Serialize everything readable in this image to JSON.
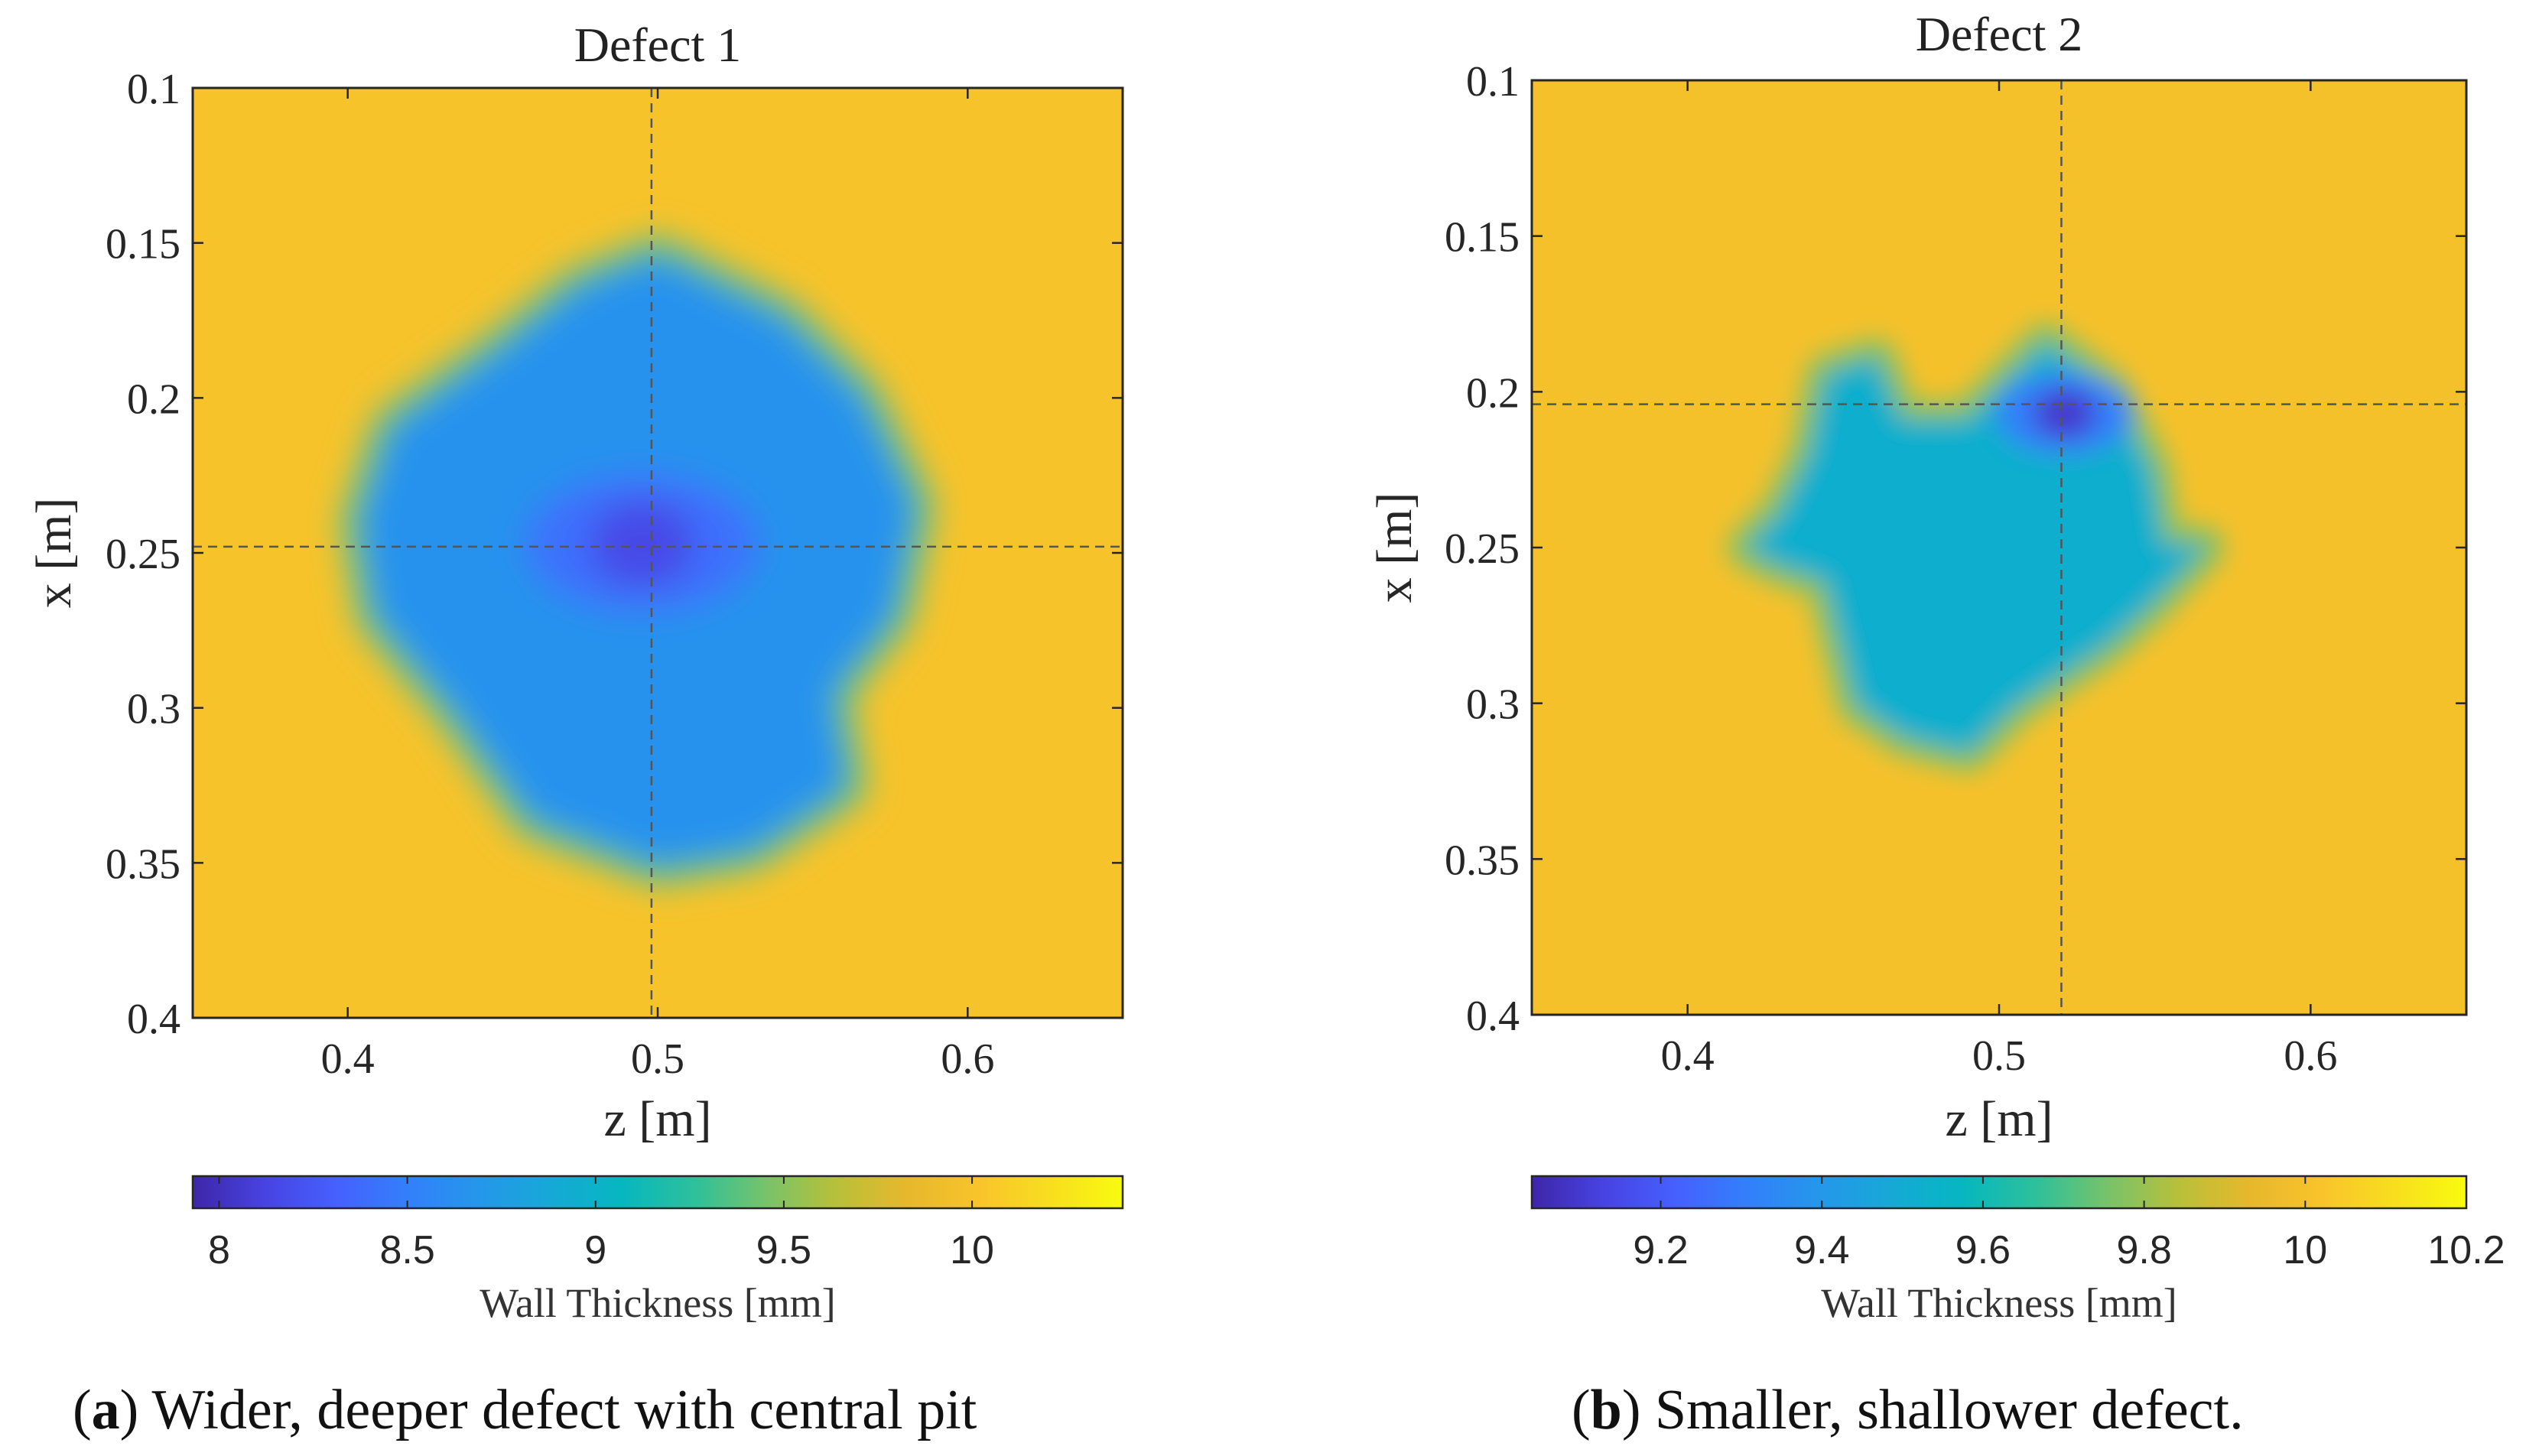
{
  "chart_data": [
    {
      "type": "heatmap",
      "title": "Defect 1",
      "xlabel": "z [m]",
      "ylabel": "x [m]",
      "xlim": [
        0.35,
        0.65
      ],
      "ylim": [
        0.1,
        0.4
      ],
      "y_reversed": true,
      "xticks": [
        0.4,
        0.5,
        0.6
      ],
      "xtick_labels": [
        "0.4",
        "0.5",
        "0.6"
      ],
      "yticks": [
        0.1,
        0.15,
        0.2,
        0.25,
        0.3,
        0.35,
        0.4
      ],
      "ytick_labels": [
        "0.1",
        "0.15",
        "0.2",
        "0.25",
        "0.3",
        "0.35",
        "0.4"
      ],
      "crosshair": {
        "z": 0.498,
        "x": 0.248
      },
      "colorbar": {
        "label": "Wall Thickness [mm]",
        "range": [
          7.93,
          10.4
        ],
        "ticks": [
          8,
          8.5,
          9,
          9.5,
          10
        ],
        "tick_labels": [
          "8",
          "8.5",
          "9",
          "9.5",
          "10"
        ]
      },
      "field": {
        "nominal_mm": 10.0,
        "defect_floor_mm": 8.65,
        "pit_min_mm": 8.15,
        "pit_center": {
          "z": 0.495,
          "x": 0.247
        },
        "pit_radius_m": 0.017,
        "outline": [
          [
            0.5,
            0.155
          ],
          [
            0.54,
            0.175
          ],
          [
            0.565,
            0.2
          ],
          [
            0.582,
            0.235
          ],
          [
            0.575,
            0.27
          ],
          [
            0.555,
            0.295
          ],
          [
            0.56,
            0.325
          ],
          [
            0.53,
            0.345
          ],
          [
            0.5,
            0.35
          ],
          [
            0.46,
            0.335
          ],
          [
            0.435,
            0.3
          ],
          [
            0.41,
            0.27
          ],
          [
            0.405,
            0.24
          ],
          [
            0.415,
            0.21
          ],
          [
            0.45,
            0.185
          ],
          [
            0.475,
            0.165
          ]
        ]
      },
      "caption": {
        "label": "a",
        "text": ") Wider, deeper defect with central pit"
      }
    },
    {
      "type": "heatmap",
      "title": "Defect 2",
      "xlabel": "z [m]",
      "ylabel": "x [m]",
      "xlim": [
        0.35,
        0.65
      ],
      "ylim": [
        0.1,
        0.4
      ],
      "y_reversed": true,
      "xticks": [
        0.4,
        0.5,
        0.6
      ],
      "xtick_labels": [
        "0.4",
        "0.5",
        "0.6"
      ],
      "yticks": [
        0.1,
        0.15,
        0.2,
        0.25,
        0.3,
        0.35,
        0.4
      ],
      "ytick_labels": [
        "0.1",
        "0.15",
        "0.2",
        "0.25",
        "0.3",
        "0.35",
        "0.4"
      ],
      "crosshair": {
        "z": 0.52,
        "x": 0.204
      },
      "colorbar": {
        "label": "Wall Thickness [mm]",
        "range": [
          9.04,
          10.2
        ],
        "ticks": [
          9.2,
          9.4,
          9.6,
          9.8,
          10,
          10.2
        ],
        "tick_labels": [
          "9.2",
          "9.4",
          "9.6",
          "9.8",
          "10",
          "10.2"
        ]
      },
      "field": {
        "nominal_mm": 10.0,
        "defect_floor_mm": 9.52,
        "pit_min_mm": 9.1,
        "pit_center": {
          "z": 0.521,
          "x": 0.207
        },
        "pit_radius_m": 0.01,
        "outline": [
          [
            0.445,
            0.195
          ],
          [
            0.46,
            0.19
          ],
          [
            0.468,
            0.21
          ],
          [
            0.49,
            0.21
          ],
          [
            0.505,
            0.195
          ],
          [
            0.515,
            0.185
          ],
          [
            0.535,
            0.2
          ],
          [
            0.548,
            0.225
          ],
          [
            0.552,
            0.25
          ],
          [
            0.565,
            0.25
          ],
          [
            0.548,
            0.268
          ],
          [
            0.535,
            0.28
          ],
          [
            0.52,
            0.29
          ],
          [
            0.505,
            0.3
          ],
          [
            0.49,
            0.315
          ],
          [
            0.47,
            0.31
          ],
          [
            0.455,
            0.3
          ],
          [
            0.45,
            0.28
          ],
          [
            0.445,
            0.26
          ],
          [
            0.43,
            0.255
          ],
          [
            0.42,
            0.25
          ],
          [
            0.43,
            0.24
          ],
          [
            0.44,
            0.22
          ]
        ]
      },
      "caption": {
        "label": "b",
        "text": ") Smaller, shallower defect."
      }
    }
  ],
  "colormap": [
    "#3e26a8",
    "#4743e2",
    "#4660fe",
    "#337ffb",
    "#2597ea",
    "#16a9d6",
    "#06b7c0",
    "#2dc09b",
    "#76c36b",
    "#b8c03a",
    "#e7b82c",
    "#f9c42b",
    "#f8de1f",
    "#f9fb0e"
  ]
}
